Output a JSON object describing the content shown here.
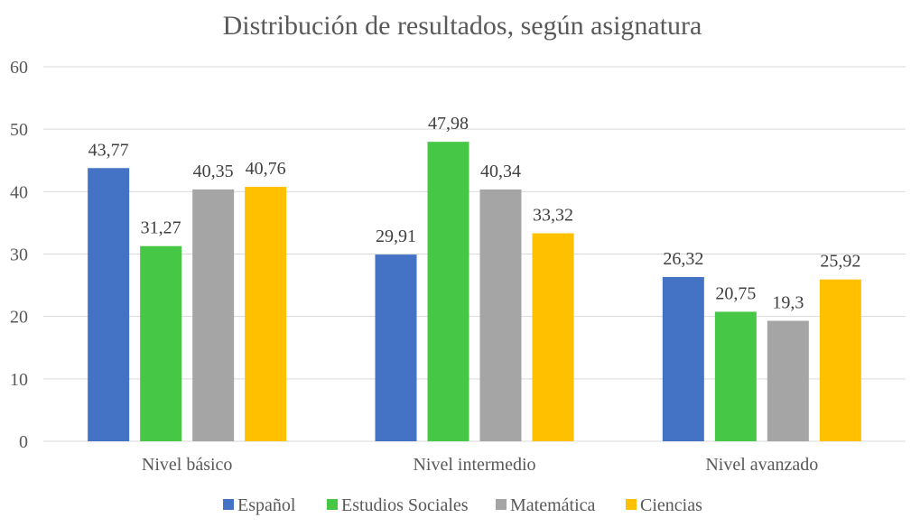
{
  "chart_data": {
    "type": "bar",
    "title": "Distribución de resultados, según asignatura",
    "xlabel": "",
    "ylabel": "",
    "ylim": [
      0,
      60
    ],
    "yticks": [
      "0",
      "10",
      "20",
      "30",
      "40",
      "50",
      "60"
    ],
    "grid": true,
    "legend_position": "bottom",
    "categories": [
      "Nivel básico",
      "Nivel intermedio",
      "Nivel avanzado"
    ],
    "series": [
      {
        "name": "Español",
        "color": "#4472C4",
        "values": [
          43.77,
          29.91,
          26.32
        ],
        "labels": [
          "43,77",
          "29,91",
          "26,32"
        ]
      },
      {
        "name": "Estudios Sociales",
        "color": "#46C846",
        "values": [
          31.27,
          47.98,
          20.75
        ],
        "labels": [
          "31,27",
          "47,98",
          "20,75"
        ]
      },
      {
        "name": "Matemática",
        "color": "#A5A5A5",
        "values": [
          40.35,
          40.34,
          19.3
        ],
        "labels": [
          "40,35",
          "40,34",
          "19,3"
        ]
      },
      {
        "name": "Ciencias",
        "color": "#FFC000",
        "values": [
          40.76,
          33.32,
          25.92
        ],
        "labels": [
          "40,76",
          "33,32",
          "25,92"
        ]
      }
    ]
  }
}
